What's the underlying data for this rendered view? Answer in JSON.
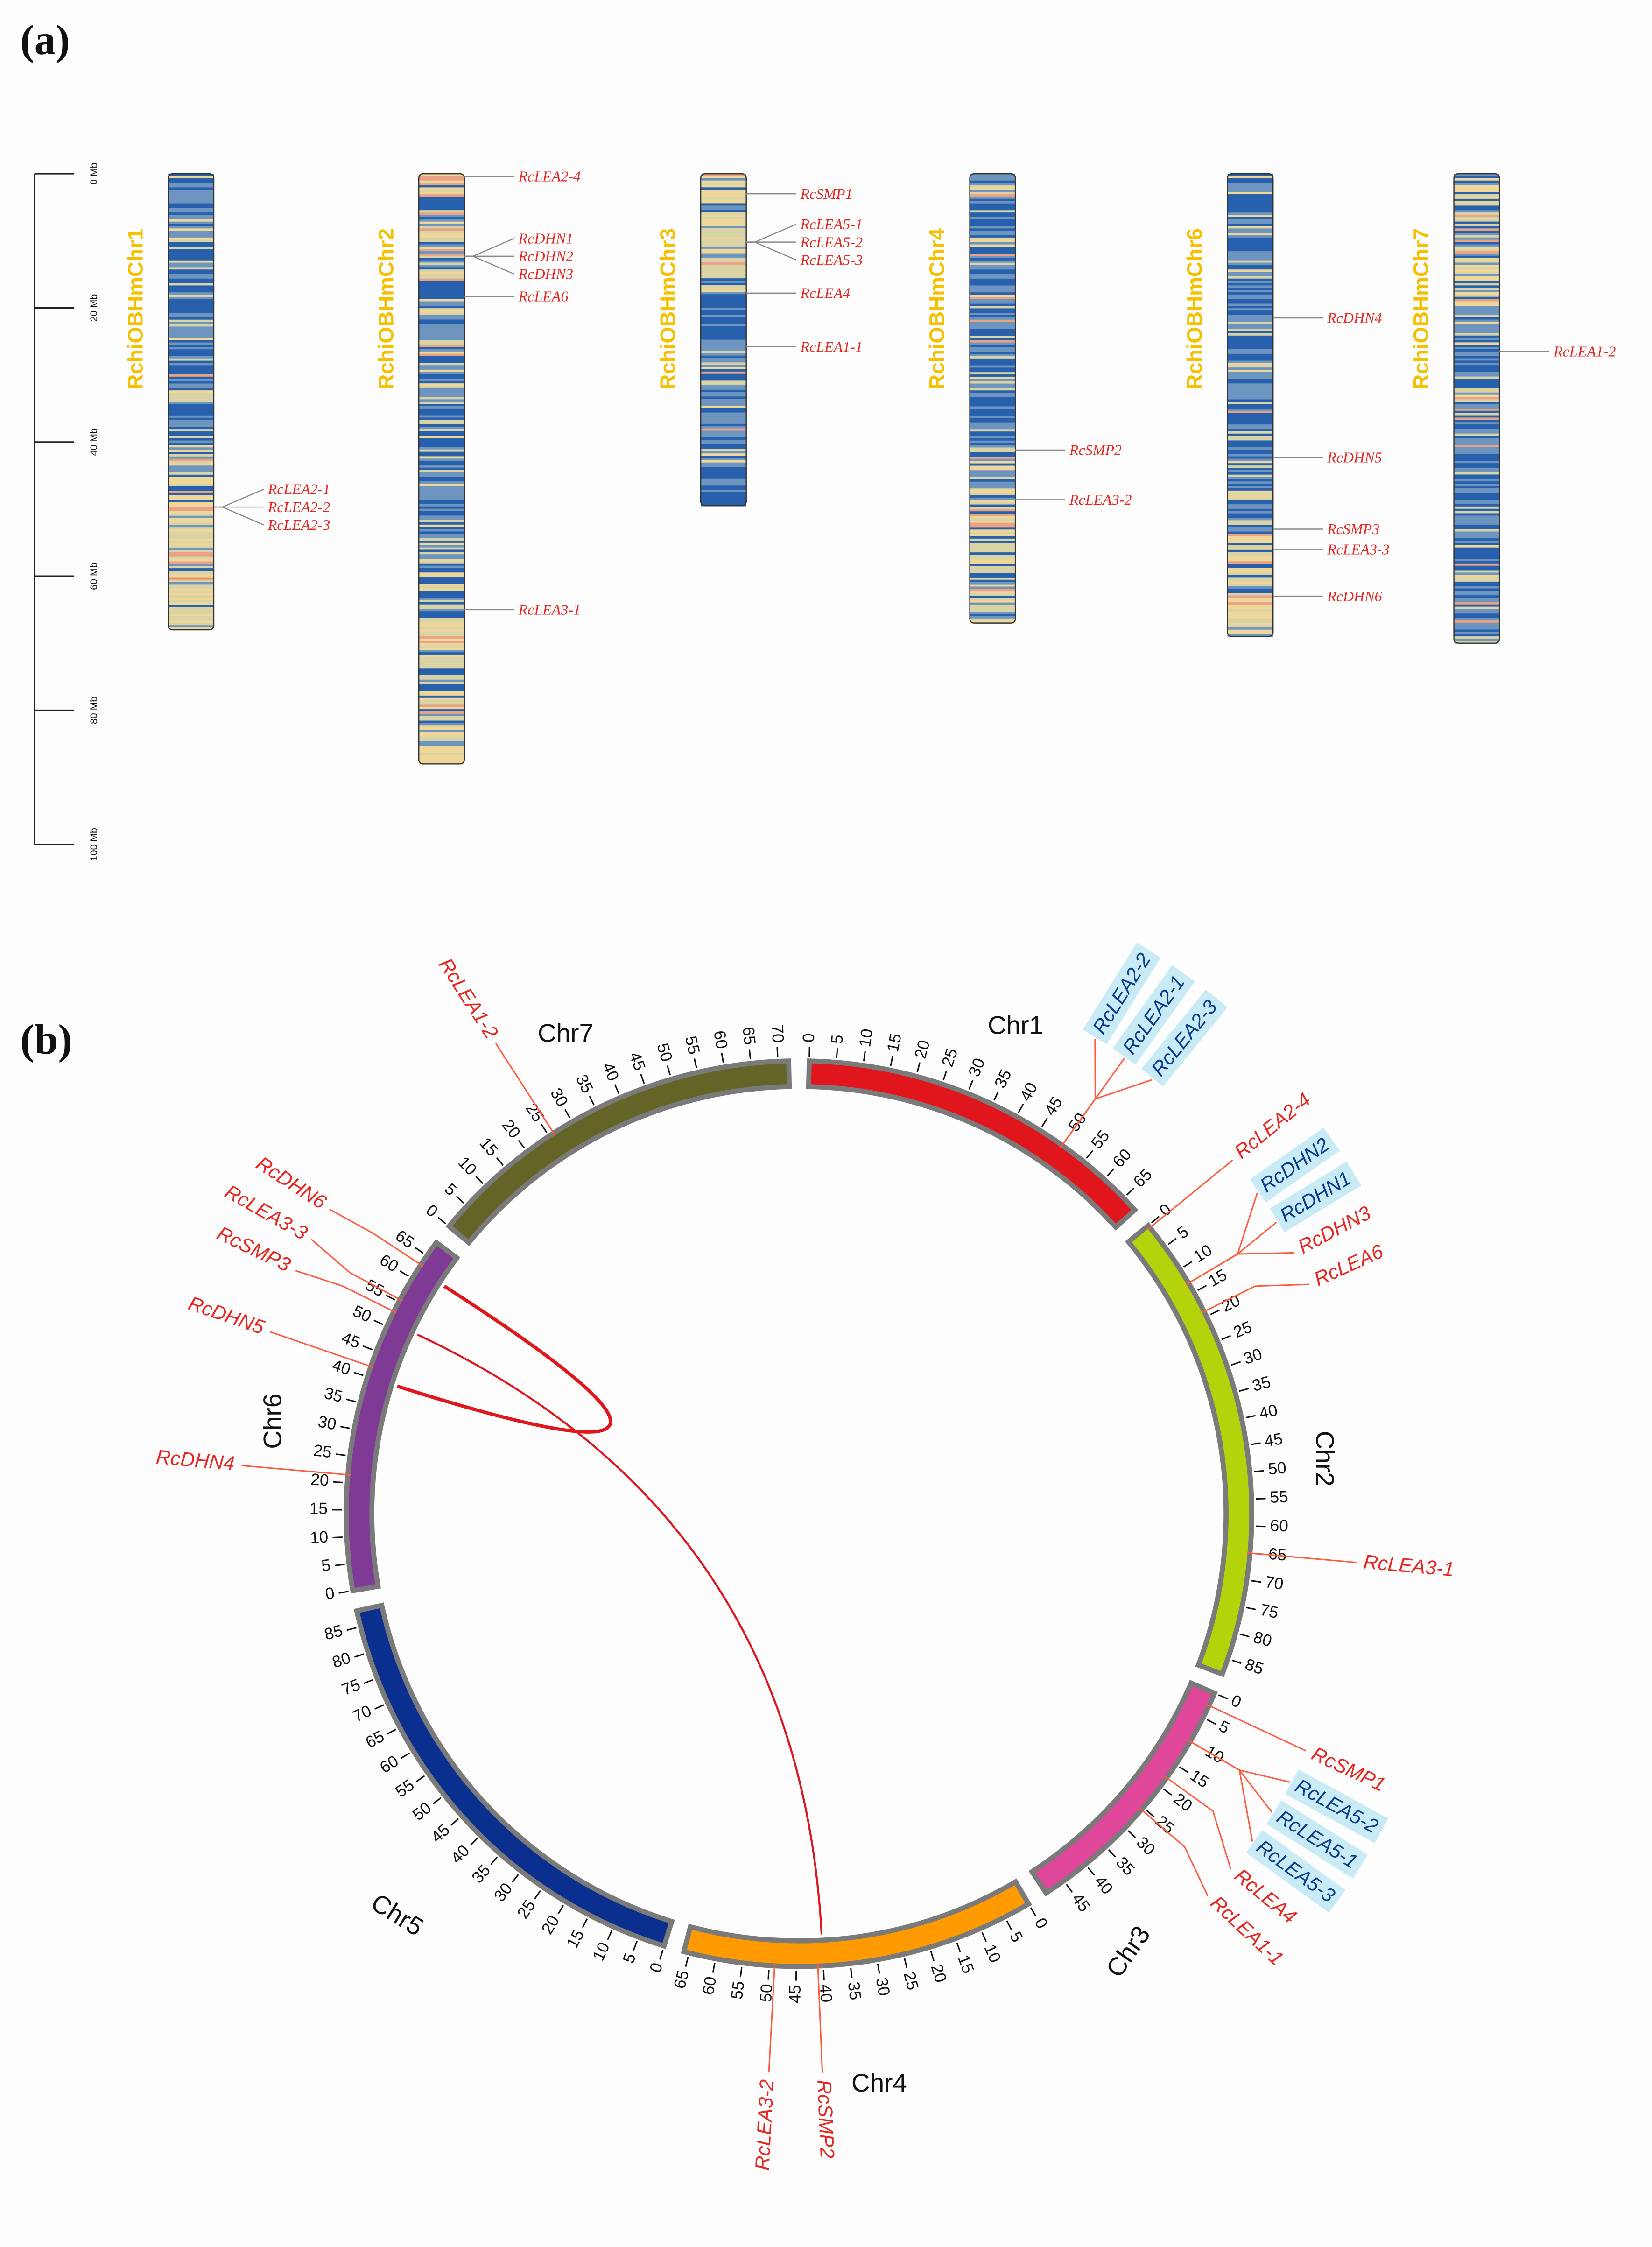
{
  "panel_labels": {
    "a": "(a)",
    "b": "(b)"
  },
  "scale_axis": {
    "ticks": [
      {
        "mb": 0,
        "label": "0 Mb"
      },
      {
        "mb": 20,
        "label": "20 Mb"
      },
      {
        "mb": 40,
        "label": "40 Mb"
      },
      {
        "mb": 60,
        "label": "60 Mb"
      },
      {
        "mb": 80,
        "label": "80 Mb"
      },
      {
        "mb": 100,
        "label": "100 Mb"
      }
    ]
  },
  "karyotype": [
    {
      "name": "RchiOBHmChr1",
      "length_mb": 68,
      "genes": [
        {
          "name": "RcLEA2-1",
          "mb": 49.7
        },
        {
          "name": "RcLEA2-2",
          "mb": 49.7
        },
        {
          "name": "RcLEA2-3",
          "mb": 49.7
        }
      ]
    },
    {
      "name": "RchiOBHmChr2",
      "length_mb": 88,
      "genes": [
        {
          "name": "RcLEA2-4",
          "mb": 0.4
        },
        {
          "name": "RcDHN1",
          "mb": 12.3
        },
        {
          "name": "RcDHN2",
          "mb": 12.3
        },
        {
          "name": "RcDHN3",
          "mb": 12.3
        },
        {
          "name": "RcLEA6",
          "mb": 18.3
        },
        {
          "name": "RcLEA3-1",
          "mb": 65
        }
      ]
    },
    {
      "name": "RchiOBHmChr3",
      "length_mb": 49.5,
      "genes": [
        {
          "name": "RcSMP1",
          "mb": 3
        },
        {
          "name": "RcLEA5-1",
          "mb": 10.2
        },
        {
          "name": "RcLEA5-2",
          "mb": 10.2
        },
        {
          "name": "RcLEA5-3",
          "mb": 10.2
        },
        {
          "name": "RcLEA4",
          "mb": 17.8
        },
        {
          "name": "RcLEA1-1",
          "mb": 25.8
        }
      ]
    },
    {
      "name": "RchiOBHmChr4",
      "length_mb": 67,
      "genes": [
        {
          "name": "RcSMP2",
          "mb": 41.2
        },
        {
          "name": "RcLEA3-2",
          "mb": 48.6
        }
      ]
    },
    {
      "name": "RchiOBHmChr6",
      "length_mb": 69,
      "genes": [
        {
          "name": "RcDHN4",
          "mb": 21.5
        },
        {
          "name": "RcDHN5",
          "mb": 42.3
        },
        {
          "name": "RcSMP3",
          "mb": 53
        },
        {
          "name": "RcLEA3-3",
          "mb": 56
        },
        {
          "name": "RcDHN6",
          "mb": 63
        }
      ]
    },
    {
      "name": "RchiOBHmChr7",
      "length_mb": 70,
      "genes": [
        {
          "name": "RcLEA1-2",
          "mb": 26.5
        }
      ]
    }
  ],
  "circos": {
    "chromosomes": [
      {
        "name": "Chr1",
        "length_mb": 68,
        "tick_max": 65,
        "color": "#e0161c"
      },
      {
        "name": "Chr2",
        "length_mb": 88,
        "tick_max": 85,
        "color": "#b5d30a"
      },
      {
        "name": "Chr3",
        "length_mb": 49,
        "tick_max": 45,
        "color": "#e0479a"
      },
      {
        "name": "Chr4",
        "length_mb": 66,
        "tick_max": 65,
        "color": "#ff9a00"
      },
      {
        "name": "Chr5",
        "length_mb": 88,
        "tick_max": 85,
        "color": "#0a2f8e"
      },
      {
        "name": "Chr6",
        "length_mb": 68,
        "tick_max": 65,
        "color": "#7f3a96"
      },
      {
        "name": "Chr7",
        "length_mb": 72,
        "tick_max": 70,
        "color": "#636426"
      }
    ],
    "genes": [
      {
        "name": "RcLEA2-2",
        "chr": 0,
        "mb": 50,
        "highlight": true
      },
      {
        "name": "RcLEA2-1",
        "chr": 0,
        "mb": 50,
        "highlight": true
      },
      {
        "name": "RcLEA2-3",
        "chr": 0,
        "mb": 50,
        "highlight": true
      },
      {
        "name": "RcLEA2-4",
        "chr": 1,
        "mb": 0.5,
        "highlight": false
      },
      {
        "name": "RcDHN2",
        "chr": 1,
        "mb": 13,
        "highlight": true
      },
      {
        "name": "RcDHN1",
        "chr": 1,
        "mb": 13,
        "highlight": true
      },
      {
        "name": "RcDHN3",
        "chr": 1,
        "mb": 13,
        "highlight": false
      },
      {
        "name": "RcLEA6",
        "chr": 1,
        "mb": 19,
        "highlight": false
      },
      {
        "name": "RcLEA3-1",
        "chr": 1,
        "mb": 65,
        "highlight": false
      },
      {
        "name": "RcSMP1",
        "chr": 2,
        "mb": 2.5,
        "highlight": false
      },
      {
        "name": "RcLEA5-2",
        "chr": 2,
        "mb": 10,
        "highlight": true
      },
      {
        "name": "RcLEA5-1",
        "chr": 2,
        "mb": 10,
        "highlight": true
      },
      {
        "name": "RcLEA5-3",
        "chr": 2,
        "mb": 10,
        "highlight": true
      },
      {
        "name": "RcLEA4",
        "chr": 2,
        "mb": 18,
        "highlight": false
      },
      {
        "name": "RcLEA1-1",
        "chr": 2,
        "mb": 25.5,
        "highlight": false
      },
      {
        "name": "RcSMP2",
        "chr": 3,
        "mb": 41,
        "highlight": false
      },
      {
        "name": "RcLEA3-2",
        "chr": 3,
        "mb": 49,
        "highlight": false
      },
      {
        "name": "RcDHN4",
        "chr": 5,
        "mb": 21.5,
        "highlight": false
      },
      {
        "name": "RcDHN5",
        "chr": 5,
        "mb": 42,
        "highlight": false
      },
      {
        "name": "RcSMP3",
        "chr": 5,
        "mb": 53,
        "highlight": false
      },
      {
        "name": "RcLEA3-3",
        "chr": 5,
        "mb": 55.5,
        "highlight": false
      },
      {
        "name": "RcDHN6",
        "chr": 5,
        "mb": 63,
        "highlight": false
      },
      {
        "name": "RcLEA1-2",
        "chr": 6,
        "mb": 26,
        "highlight": false
      }
    ],
    "links": [
      {
        "from": {
          "chr": 5,
          "mb": 40
        },
        "to": {
          "chr": 5,
          "mb": 62
        },
        "weight": "thick"
      },
      {
        "from": {
          "chr": 5,
          "mb": 51
        },
        "to": {
          "chr": 3,
          "mb": 40
        },
        "weight": "thin"
      }
    ],
    "colors": {
      "gene_label": "#e8251f",
      "highlight_text": "#0b3a8c",
      "highlight_bg": "#c8ebf5",
      "link": "#e0161c",
      "marker_line": "#ff5a3c",
      "outline": "#7a7a7a"
    }
  }
}
